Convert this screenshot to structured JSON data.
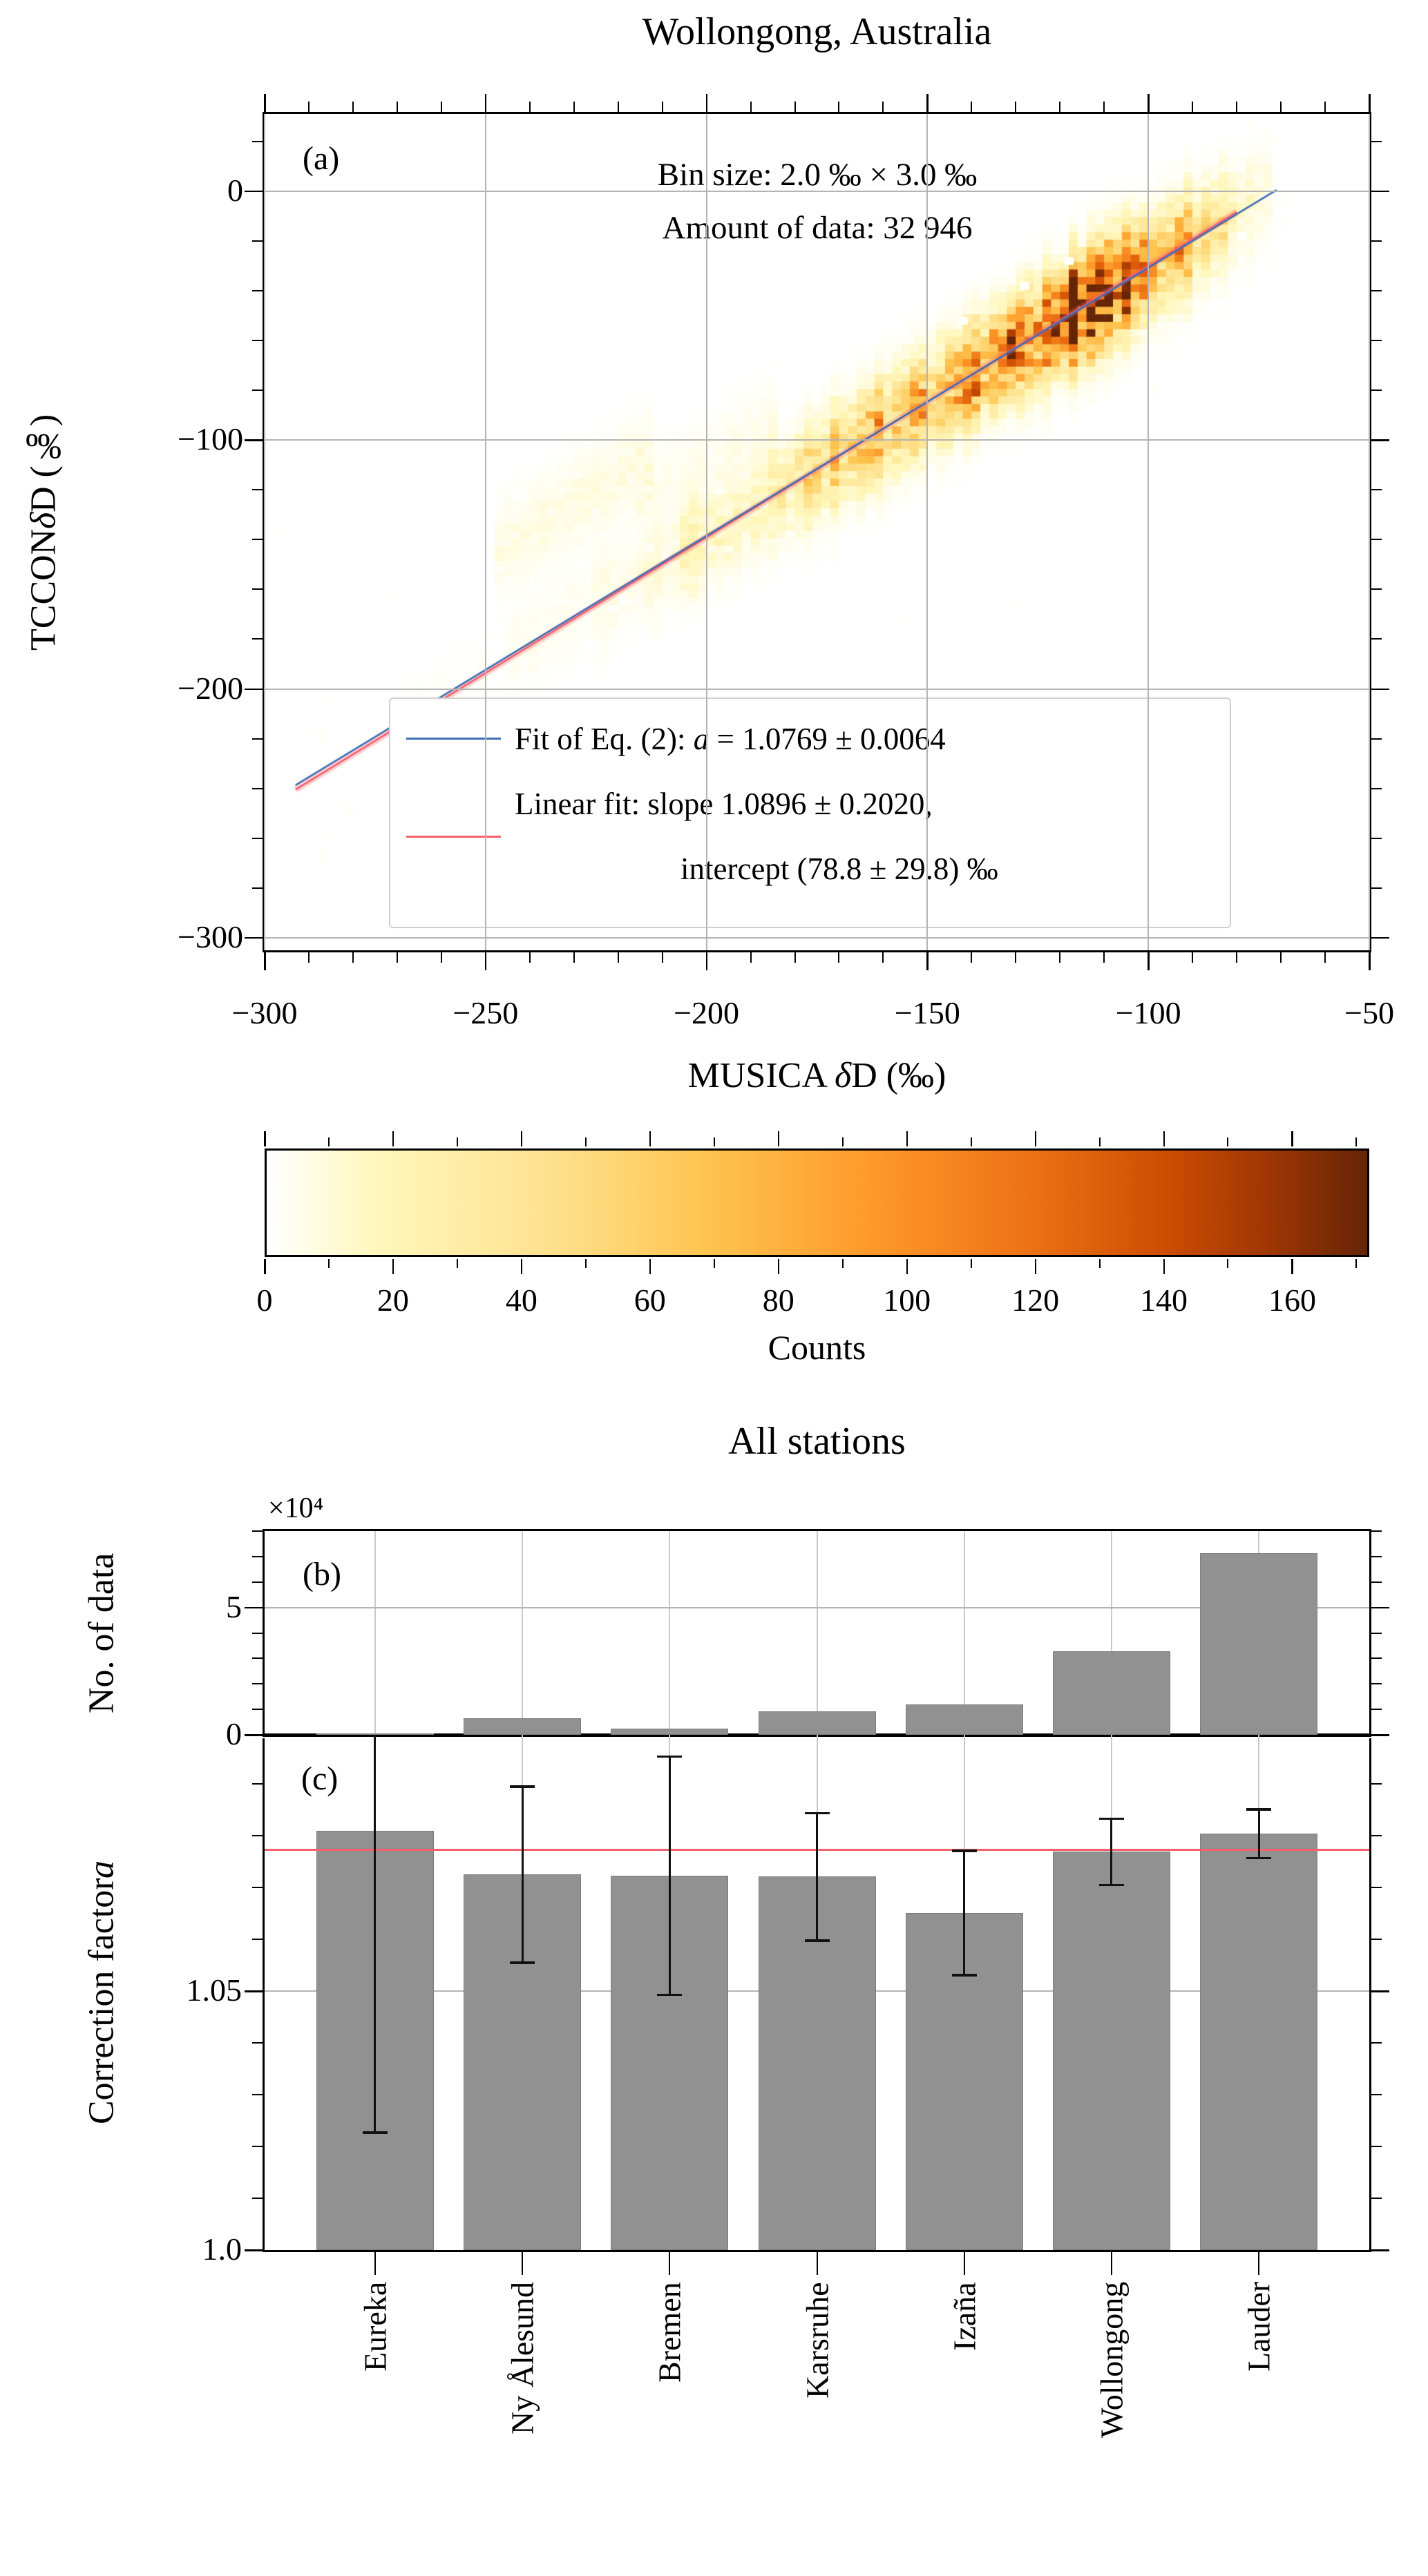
{
  "figure": {
    "top_title": "Wollongong, Australia",
    "bottom_title": "All stations"
  },
  "colors": {
    "fit_blue": "#3d6db5",
    "fit_red": "#f4606c",
    "fit_red_band": "rgba(244,96,108,0.28)",
    "bar_gray": "#919191",
    "grid": "#b4b4b4",
    "grid_light": "#c9c9c9",
    "frame": "#000000"
  },
  "chart_data": [
    {
      "type": "heatmap",
      "panel": "a",
      "panel_label": "(a)",
      "title": "Wollongong, Australia",
      "annotation": {
        "line1": "Bin size: 2.0 ‰ × 3.0 ‰",
        "line2": "Amount of data: 32 946"
      },
      "xlabel_parts": [
        {
          "t": "MUSICA ",
          "i": 0
        },
        {
          "t": "δ",
          "i": 1
        },
        {
          "t": "D (‰)",
          "i": 0
        }
      ],
      "ylabel_parts": [
        {
          "t": "TCCON ",
          "i": 0
        },
        {
          "t": "δ",
          "i": 1
        },
        {
          "t": "D (‰)",
          "i": 0
        }
      ],
      "xlim": [
        -300,
        -50
      ],
      "ylim": [
        -305,
        31
      ],
      "xticks": [
        -300,
        -250,
        -200,
        -150,
        -100,
        -50
      ],
      "xtick_labels": [
        "−300",
        "−250",
        "−200",
        "−150",
        "−100",
        "−50"
      ],
      "yticks": [
        0,
        -100,
        -200,
        -300
      ],
      "ytick_labels": [
        "0",
        "−100",
        "−200",
        "−300"
      ],
      "xminor_step": 10,
      "yminor_step": 20,
      "grid": true,
      "legend_position": "lower center-right",
      "legend": [
        {
          "color": "#3d6db5",
          "label_parts": [
            {
              "t": "Fit of Eq. (2): ",
              "i": 0
            },
            {
              "t": "a",
              "i": 1
            },
            {
              "t": " = 1.0769 ± 0.0064",
              "i": 0
            }
          ]
        },
        {
          "color": "#f4606c",
          "label_line1": "Linear fit: slope 1.0896 ± 0.2020,",
          "label_line2": "intercept (78.8 ± 29.8) ‰"
        }
      ],
      "fit_blue": {
        "slope": 1.0769,
        "slope_err": 0.0064,
        "intercept_rule": "1000*(a-1)",
        "intercept": 76.9,
        "x_range": [
          -293,
          -71
        ]
      },
      "fit_red": {
        "slope": 1.0896,
        "slope_err": 0.202,
        "intercept": 78.8,
        "intercept_err": 29.8,
        "x_range": [
          -293,
          -80
        ]
      },
      "heatmap_spec": {
        "bin_size_x": 2.0,
        "bin_size_y": 3.0,
        "n_data": 32946,
        "vmax": 172,
        "seed": 7,
        "cloud_line": {
          "slope": 1.077,
          "intercept": 77
        },
        "sigma_base": 10.5,
        "sigma_jitter": 3,
        "amp_profile": [
          [
            -272,
            -246,
            1
          ],
          [
            -246,
            -226,
            3
          ],
          [
            -226,
            -206,
            7
          ],
          [
            -206,
            -186,
            18
          ],
          [
            -186,
            -171,
            38
          ],
          [
            -171,
            -156,
            58
          ],
          [
            -156,
            -146,
            68
          ],
          [
            -146,
            -136,
            85
          ],
          [
            -136,
            -126,
            100
          ],
          [
            -126,
            -119,
            135
          ],
          [
            -119,
            -110,
            168
          ],
          [
            -110,
            -103,
            145
          ],
          [
            -103,
            -96,
            95
          ],
          [
            -96,
            -89,
            60
          ],
          [
            -89,
            -81,
            32
          ],
          [
            -81,
            -76,
            16
          ],
          [
            -76,
            -72,
            8
          ]
        ],
        "upper_branch": [
          {
            "x_range": [
              -247,
              -212
            ],
            "d_center": 45,
            "d_sigma": 12,
            "amp": 7
          },
          {
            "x_range": [
              -215,
              -185
            ],
            "d_center": 32,
            "d_sigma": 10,
            "amp": 4
          }
        ],
        "speckle_cells": [
          [
            -296,
            -137,
            1
          ],
          [
            -295,
            -186,
            1
          ],
          [
            -290,
            -171,
            1
          ],
          [
            -283,
            -158,
            1
          ],
          [
            -279,
            -190,
            1
          ],
          [
            -272,
            -163,
            1
          ],
          [
            -263,
            -196,
            1
          ],
          [
            -255,
            -178,
            1
          ],
          [
            -247,
            -152,
            2
          ],
          [
            -239,
            -205,
            1
          ],
          [
            -231,
            -147,
            1
          ],
          [
            -221,
            -168,
            1
          ],
          [
            -213,
            -143,
            2
          ],
          [
            -205,
            -216,
            1
          ],
          [
            -197,
            -120,
            1
          ],
          [
            -155,
            -173,
            1
          ],
          [
            -143,
            -187,
            1
          ],
          [
            -131,
            -166,
            1
          ],
          [
            -121,
            -150,
            1
          ],
          [
            -109,
            -122,
            1
          ],
          [
            -99,
            -80,
            2
          ],
          [
            -89,
            -55,
            1
          ],
          [
            -79,
            -18,
            1
          ],
          [
            -71,
            -30,
            1
          ],
          [
            -154,
            -60,
            2
          ],
          [
            -142,
            -52,
            1
          ],
          [
            -128,
            -38,
            1
          ],
          [
            -118,
            -28,
            1
          ]
        ],
        "colormap_stops": [
          [
            0,
            "#ffffff"
          ],
          [
            0.1,
            "#fff7bc"
          ],
          [
            0.25,
            "#fee391"
          ],
          [
            0.4,
            "#fec44f"
          ],
          [
            0.55,
            "#fe9929"
          ],
          [
            0.7,
            "#ec7014"
          ],
          [
            0.82,
            "#cc4c02"
          ],
          [
            0.92,
            "#993404"
          ],
          [
            1,
            "#662506"
          ]
        ]
      }
    },
    {
      "type": "colorbar",
      "label": "Counts",
      "vmin": 0,
      "vmax": 172,
      "ticks": [
        0,
        20,
        40,
        60,
        80,
        100,
        120,
        140,
        160
      ],
      "minor_step": 10
    },
    {
      "type": "bar",
      "panel": "b",
      "panel_label": "(b)",
      "title": "All stations",
      "ylabel": "No. of data",
      "multiplier_label": "×10⁴",
      "categories": [
        "Eureka",
        "Ny Ålesund",
        "Bremen",
        "Karsruhe",
        "Izaña",
        "Wollongong",
        "Lauder"
      ],
      "values": [
        500,
        6500,
        2500,
        9300,
        12000,
        32946,
        71400
      ],
      "ylim": [
        0,
        80000
      ],
      "yticks": [
        0,
        50000
      ],
      "ytick_labels": [
        "0",
        "5"
      ],
      "yminor_step": 10000,
      "grid_y": [
        50000
      ],
      "grid_x_at_categories": true
    },
    {
      "type": "bar",
      "panel": "c",
      "panel_label": "(c)",
      "ylabel_parts": [
        {
          "t": "Correction factor ",
          "i": 0
        },
        {
          "t": "a",
          "i": 1
        }
      ],
      "categories": [
        "Eureka",
        "Ny Ålesund",
        "Bremen",
        "Karsruhe",
        "Izaña",
        "Wollongong",
        "Lauder"
      ],
      "values": [
        1.081,
        1.0725,
        1.0723,
        1.0721,
        1.0651,
        1.0769,
        1.0804
      ],
      "errors_minus": [
        0.0583,
        0.017,
        0.023,
        0.0123,
        0.012,
        0.0064,
        0.0047
      ],
      "errors_plus": [
        0.0583,
        0.017,
        0.023,
        0.0123,
        0.012,
        0.0064,
        0.0047
      ],
      "reference_line": {
        "value": 1.0773,
        "color": "#f4606c"
      },
      "ylim": [
        1.0,
        1.0995
      ],
      "yticks": [
        1.0,
        1.05
      ],
      "ytick_labels": [
        "1.0",
        "1.05"
      ],
      "yminor_step": 0.01,
      "grid_y": [
        1.05
      ],
      "grid_x_at_categories": true
    }
  ]
}
